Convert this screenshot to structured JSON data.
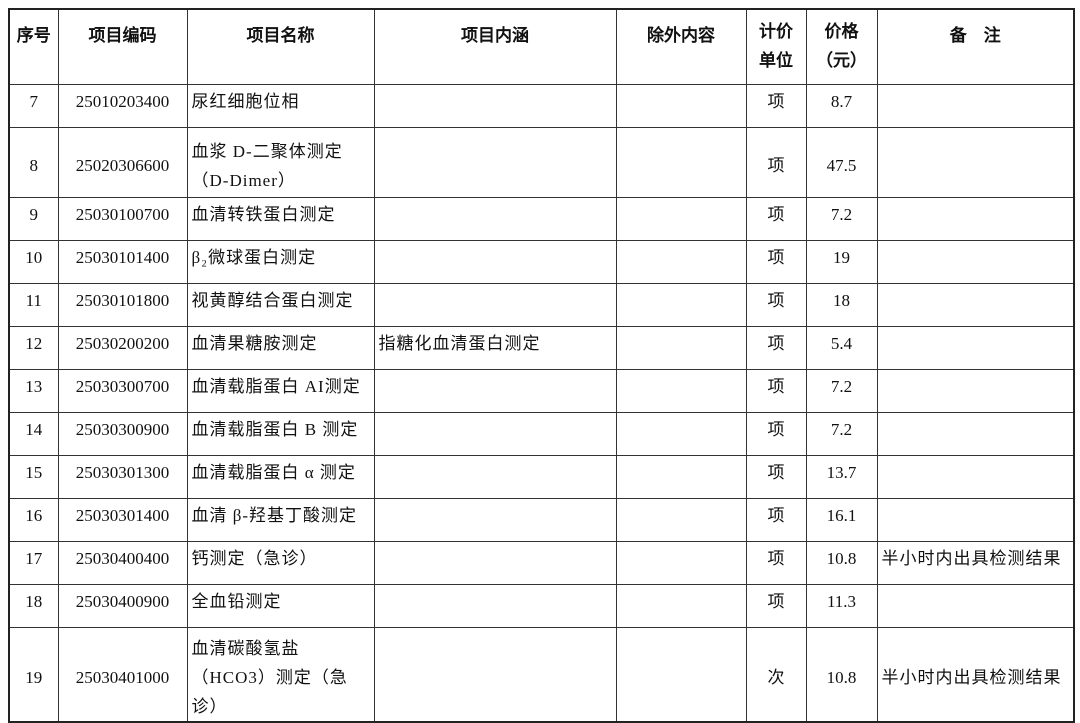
{
  "headers": [
    "序号",
    "项目编码",
    "项目名称",
    "项目内涵",
    "除外内容",
    "计价单位",
    "价格（元）",
    "备　注"
  ],
  "header_lines": {
    "unit": [
      "计价",
      "单位"
    ],
    "price": [
      "价格",
      "（元）"
    ]
  },
  "rows": [
    {
      "no": "7",
      "code": "25010203400",
      "name": "尿红细胞位相",
      "content": "",
      "exclude": "",
      "unit": "项",
      "price": "8.7",
      "note": ""
    },
    {
      "no": "8",
      "code": "25020306600",
      "name": "血浆 D-二聚体测定（D-Dimer）",
      "content": "",
      "exclude": "",
      "unit": "项",
      "price": "47.5",
      "note": ""
    },
    {
      "no": "9",
      "code": "25030100700",
      "name": "血清转铁蛋白测定",
      "content": "",
      "exclude": "",
      "unit": "项",
      "price": "7.2",
      "note": ""
    },
    {
      "no": "10",
      "code": "25030101400",
      "name": "β₂微球蛋白测定",
      "content": "",
      "exclude": "",
      "unit": "项",
      "price": "19",
      "note": ""
    },
    {
      "no": "11",
      "code": "25030101800",
      "name": "视黄醇结合蛋白测定",
      "content": "",
      "exclude": "",
      "unit": "项",
      "price": "18",
      "note": ""
    },
    {
      "no": "12",
      "code": "25030200200",
      "name": "血清果糖胺测定",
      "content": "指糖化血清蛋白测定",
      "exclude": "",
      "unit": "项",
      "price": "5.4",
      "note": ""
    },
    {
      "no": "13",
      "code": "25030300700",
      "name": "血清载脂蛋白 AI测定",
      "content": "",
      "exclude": "",
      "unit": "项",
      "price": "7.2",
      "note": ""
    },
    {
      "no": "14",
      "code": "25030300900",
      "name": "血清载脂蛋白 B 测定",
      "content": "",
      "exclude": "",
      "unit": "项",
      "price": "7.2",
      "note": ""
    },
    {
      "no": "15",
      "code": "25030301300",
      "name": "血清载脂蛋白 α 测定",
      "content": "",
      "exclude": "",
      "unit": "项",
      "price": "13.7",
      "note": ""
    },
    {
      "no": "16",
      "code": "25030301400",
      "name": "血清 β-羟基丁酸测定",
      "content": "",
      "exclude": "",
      "unit": "项",
      "price": "16.1",
      "note": ""
    },
    {
      "no": "17",
      "code": "25030400400",
      "name": "钙测定（急诊）",
      "content": "",
      "exclude": "",
      "unit": "项",
      "price": "10.8",
      "note": "半小时内出具检测结果"
    },
    {
      "no": "18",
      "code": "25030400900",
      "name": "全血铅测定",
      "content": "",
      "exclude": "",
      "unit": "项",
      "price": "11.3",
      "note": ""
    },
    {
      "no": "19",
      "code": "25030401000",
      "name": "血清碳酸氢盐（HCO3）测定（急诊）",
      "content": "",
      "exclude": "",
      "unit": "次",
      "price": "10.8",
      "note": "半小时内出具检测结果"
    }
  ]
}
